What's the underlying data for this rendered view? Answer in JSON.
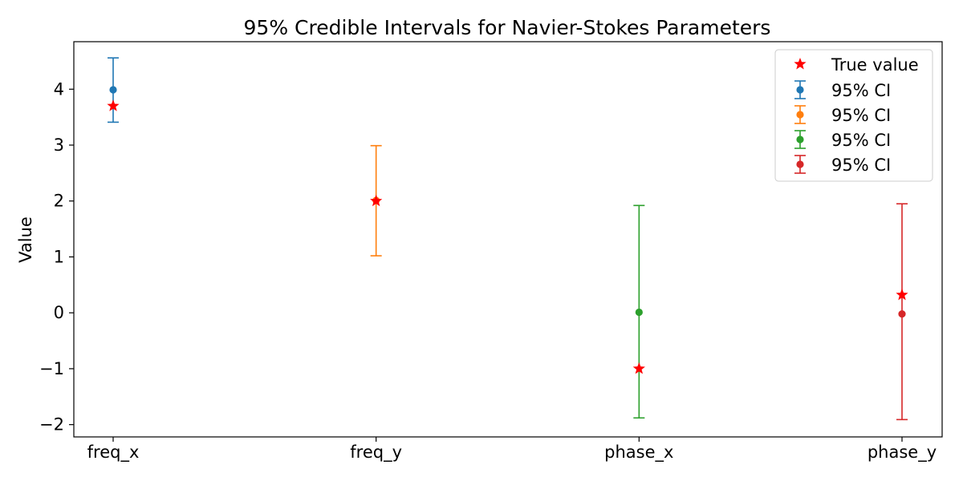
{
  "chart_data": {
    "type": "scatter",
    "title": "95% Credible Intervals for Navier-Stokes Parameters",
    "xlabel": "",
    "ylabel": "Value",
    "categories": [
      "freq_x",
      "freq_y",
      "phase_x",
      "phase_y"
    ],
    "yticks": [
      4,
      3,
      2,
      1,
      0,
      -1,
      -2
    ],
    "ytick_labels": [
      "4",
      "3",
      "2",
      "1",
      "0",
      "−1",
      "−2"
    ],
    "ylim": [
      -2.22,
      4.85
    ],
    "grid": false,
    "legend_position": "top-right",
    "series": [
      {
        "name": "95% CI",
        "color": "#1f77b4",
        "category": "freq_x",
        "mean": 3.99,
        "lower": 3.41,
        "upper": 4.56
      },
      {
        "name": "95% CI",
        "color": "#ff7f0e",
        "category": "freq_y",
        "mean": 2.01,
        "lower": 1.02,
        "upper": 2.99
      },
      {
        "name": "95% CI",
        "color": "#2ca02c",
        "category": "phase_x",
        "mean": 0.01,
        "lower": -1.88,
        "upper": 1.92
      },
      {
        "name": "95% CI",
        "color": "#d62728",
        "category": "phase_y",
        "mean": -0.02,
        "lower": -1.91,
        "upper": 1.95
      }
    ],
    "true_values": {
      "name": "True value",
      "color": "#ff0000",
      "values": [
        3.7,
        2.0,
        -1.0,
        0.32
      ]
    }
  }
}
